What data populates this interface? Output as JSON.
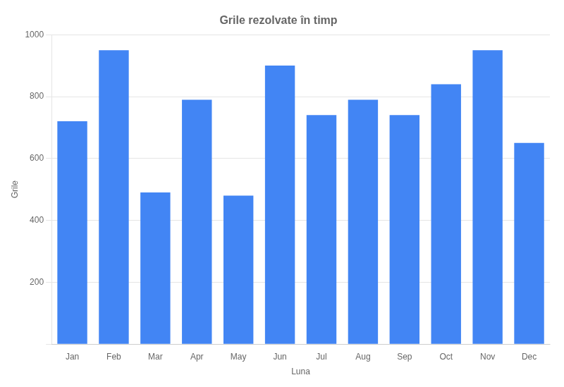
{
  "chart_data": {
    "type": "bar",
    "title": "Grile rezolvate în timp",
    "xlabel": "Luna",
    "ylabel": "Grile",
    "categories": [
      "Jan",
      "Feb",
      "Mar",
      "Apr",
      "May",
      "Jun",
      "Jul",
      "Aug",
      "Sep",
      "Oct",
      "Nov",
      "Dec"
    ],
    "values": [
      720,
      950,
      490,
      790,
      480,
      900,
      740,
      790,
      740,
      840,
      950,
      650
    ],
    "color": "#4285f4",
    "ylim": [
      0,
      1000
    ],
    "yticks": [
      {
        "value": 0,
        "label": ""
      },
      200,
      400,
      600,
      800,
      1000
    ],
    "grid": true
  }
}
